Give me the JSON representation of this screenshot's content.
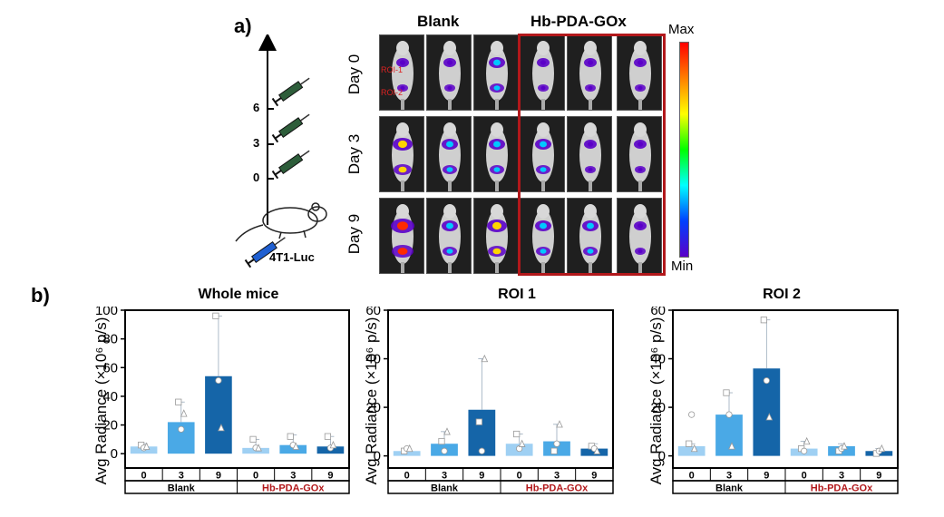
{
  "panel_a": {
    "label": "a)",
    "groups": [
      "Blank",
      "Hb-PDA-GOx"
    ],
    "days": [
      "Day 0",
      "Day 3",
      "Day 9"
    ],
    "timeline_ticks": [
      "6",
      "3",
      "0"
    ],
    "cell_line": "4T1-Luc",
    "roi_labels": [
      "ROI-1",
      "ROI-2"
    ],
    "colorbar": {
      "max_label": "Max",
      "min_label": "Min"
    },
    "highlight_color": "#b2181b"
  },
  "panel_b": {
    "label": "b)",
    "group_colors": {
      "day0": "#9fd0f3",
      "day3": "#4aa9e6",
      "day9": "#1565a8"
    }
  },
  "chart_data": [
    {
      "type": "bar",
      "title": "Whole mice",
      "ylabel": "Avg Radiance (×10⁶ p/s)",
      "ylim": [
        -10,
        100
      ],
      "yticks": [
        0,
        20,
        40,
        60,
        80,
        100
      ],
      "categories": [
        "0",
        "3",
        "9",
        "0",
        "3",
        "9"
      ],
      "groups": [
        {
          "name": "Blank",
          "indices": [
            0,
            1,
            2
          ]
        },
        {
          "name": "Hb-PDA-GOx",
          "indices": [
            3,
            4,
            5
          ]
        }
      ],
      "values": [
        5,
        22,
        54,
        4,
        6,
        5
      ],
      "error_upper": [
        7,
        36,
        96,
        10,
        13,
        12
      ],
      "points": [
        [
          6,
          4,
          5
        ],
        [
          36,
          17,
          28
        ],
        [
          96,
          51,
          18
        ],
        [
          10,
          4,
          4
        ],
        [
          12,
          6,
          5
        ],
        [
          12,
          4,
          6
        ]
      ],
      "point_markers": [
        "square",
        "circle",
        "triangle"
      ]
    },
    {
      "type": "bar",
      "title": "ROI 1",
      "ylabel": "Avg Radiance (×10⁶ p/s)",
      "ylim": [
        -5,
        60
      ],
      "yticks": [
        0,
        20,
        40,
        60
      ],
      "categories": [
        "0",
        "3",
        "9",
        "0",
        "3",
        "9"
      ],
      "groups": [
        {
          "name": "Blank",
          "indices": [
            0,
            1,
            2
          ]
        },
        {
          "name": "Hb-PDA-GOx",
          "indices": [
            3,
            4,
            5
          ]
        }
      ],
      "values": [
        2,
        5,
        19,
        5,
        6,
        3
      ],
      "error_upper": [
        3,
        10,
        40,
        9,
        13,
        5
      ],
      "points": [
        [
          2,
          3,
          3
        ],
        [
          6,
          2,
          10
        ],
        [
          14,
          2,
          40
        ],
        [
          9,
          3,
          5
        ],
        [
          2,
          5,
          13
        ],
        [
          4,
          3,
          2
        ]
      ],
      "point_markers": [
        "square",
        "circle",
        "triangle"
      ]
    },
    {
      "type": "bar",
      "title": "ROI 2",
      "ylabel": "Avg Radiance (×10⁶ p/s)",
      "ylim": [
        -5,
        60
      ],
      "yticks": [
        0,
        20,
        40,
        60
      ],
      "categories": [
        "0",
        "3",
        "9",
        "0",
        "3",
        "9"
      ],
      "groups": [
        {
          "name": "Blank",
          "indices": [
            0,
            1,
            2
          ]
        },
        {
          "name": "Hb-PDA-GOx",
          "indices": [
            3,
            4,
            5
          ]
        }
      ],
      "values": [
        4,
        17,
        36,
        3,
        4,
        2
      ],
      "error_upper": [
        5,
        26,
        56,
        6,
        5,
        3
      ],
      "points": [
        [
          5,
          17,
          3
        ],
        [
          26,
          17,
          4
        ],
        [
          56,
          31,
          16
        ],
        [
          3,
          2,
          6
        ],
        [
          2,
          3,
          4
        ],
        [
          1,
          2,
          3
        ]
      ],
      "point_markers": [
        "square",
        "circle",
        "triangle"
      ]
    }
  ]
}
